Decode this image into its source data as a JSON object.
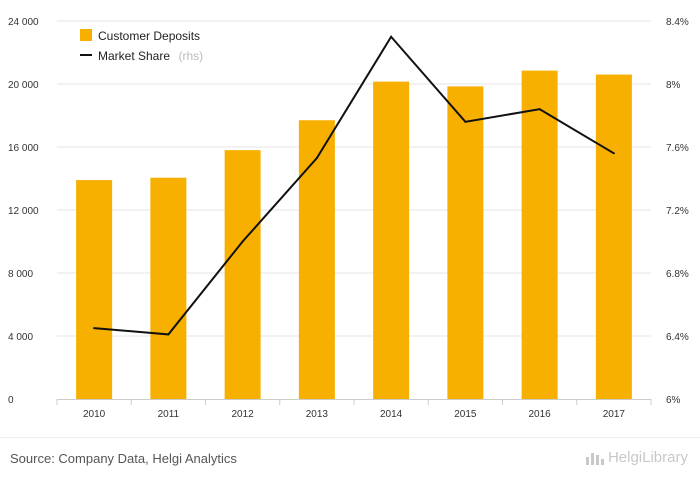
{
  "chart_data": {
    "type": "bar+line",
    "categories": [
      "2010",
      "2011",
      "2012",
      "2013",
      "2014",
      "2015",
      "2016",
      "2017"
    ],
    "series": [
      {
        "name": "Customer Deposits",
        "type": "bar",
        "axis": "left",
        "color": "#f8b000",
        "values": [
          13900,
          14050,
          15800,
          17700,
          20150,
          19850,
          20850,
          20600
        ]
      },
      {
        "name": "Market Share",
        "name_suffix": "(rhs)",
        "type": "line",
        "axis": "right",
        "color": "#111111",
        "values": [
          6.45,
          6.41,
          7.0,
          7.53,
          8.3,
          7.76,
          7.84,
          7.56
        ]
      }
    ],
    "y_left": {
      "ticks": [
        0,
        4000,
        8000,
        12000,
        16000,
        20000,
        24000
      ],
      "tick_labels": [
        "0",
        "4 000",
        "8 000",
        "12 000",
        "16 000",
        "20 000",
        "24 000"
      ],
      "ylim": [
        0,
        24000
      ]
    },
    "y_right": {
      "ticks": [
        6.0,
        6.4,
        6.8,
        7.2,
        7.6,
        8.0,
        8.4
      ],
      "tick_labels": [
        "6%",
        "6.4%",
        "6.8%",
        "7.2%",
        "7.6%",
        "8%",
        "8.4%"
      ],
      "ylim": [
        6.0,
        8.4
      ]
    },
    "grid": true,
    "legend_position": "top-left",
    "title": "",
    "xlabel": "",
    "ylabel": ""
  },
  "footer": {
    "source": "Source: Company Data, Helgi Analytics",
    "brand": "HelgiLibrary"
  }
}
